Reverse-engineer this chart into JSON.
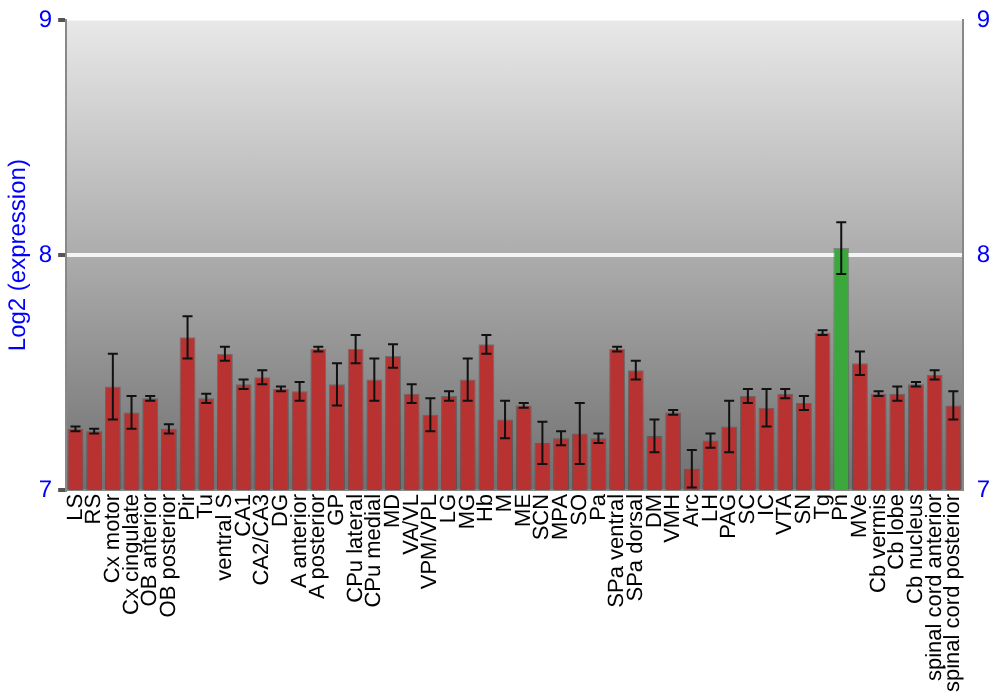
{
  "chart_data": {
    "type": "bar",
    "ylabel": "Log2 (expression)",
    "categories": [
      "LS",
      "RS",
      "Cx motor",
      "Cx cingulate",
      "OB anterior",
      "OB posterior",
      "Pir",
      "Tu",
      "ventral S",
      "CA1",
      "CA2/CA3",
      "DG",
      "A anterior",
      "A posterior",
      "GP",
      "CPu lateral",
      "CPu medial",
      "MD",
      "VA/VL",
      "VPM/VPL",
      "LG",
      "MG",
      "Hb",
      "M",
      "ME",
      "SCN",
      "MPA",
      "SO",
      "Pa",
      "SPa ventral",
      "SPa dorsal",
      "DM",
      "VMH",
      "Arc",
      "LH",
      "PAG",
      "SC",
      "IC",
      "VTA",
      "SN",
      "Tg",
      "Pn",
      "MVe",
      "Cb vermis",
      "Cb lobe",
      "Cb nucleus",
      "spinal cord anterior",
      "spinal cord posterior"
    ],
    "values": [
      7.26,
      7.25,
      7.44,
      7.33,
      7.39,
      7.26,
      7.65,
      7.39,
      7.58,
      7.45,
      7.48,
      7.43,
      7.42,
      7.6,
      7.45,
      7.6,
      7.47,
      7.57,
      7.41,
      7.32,
      7.4,
      7.47,
      7.62,
      7.3,
      7.36,
      7.2,
      7.22,
      7.24,
      7.22,
      7.6,
      7.51,
      7.23,
      7.33,
      7.09,
      7.21,
      7.27,
      7.4,
      7.35,
      7.41,
      7.37,
      7.67,
      8.03,
      7.54,
      7.41,
      7.41,
      7.45,
      7.49,
      7.36
    ],
    "errors": [
      0.01,
      0.01,
      0.14,
      0.07,
      0.01,
      0.02,
      0.09,
      0.02,
      0.03,
      0.02,
      0.03,
      0.01,
      0.04,
      0.01,
      0.09,
      0.06,
      0.09,
      0.05,
      0.04,
      0.07,
      0.02,
      0.09,
      0.04,
      0.08,
      0.01,
      0.09,
      0.03,
      0.13,
      0.02,
      0.01,
      0.04,
      0.07,
      0.01,
      0.08,
      0.03,
      0.11,
      0.03,
      0.08,
      0.02,
      0.03,
      0.01,
      0.11,
      0.05,
      0.01,
      0.03,
      0.01,
      0.02,
      0.06
    ],
    "colors": [
      "#b83232",
      "#b83232",
      "#b83232",
      "#b83232",
      "#b83232",
      "#b83232",
      "#b83232",
      "#b83232",
      "#b83232",
      "#b83232",
      "#b83232",
      "#b83232",
      "#b83232",
      "#b83232",
      "#b83232",
      "#b83232",
      "#b83232",
      "#b83232",
      "#b83232",
      "#b83232",
      "#b83232",
      "#b83232",
      "#b83232",
      "#b83232",
      "#b83232",
      "#b83232",
      "#b83232",
      "#b83232",
      "#b83232",
      "#b83232",
      "#b83232",
      "#b83232",
      "#b83232",
      "#b83232",
      "#b83232",
      "#b83232",
      "#b83232",
      "#b83232",
      "#b83232",
      "#b83232",
      "#b83232",
      "#3aa83a",
      "#b83232",
      "#b83232",
      "#b83232",
      "#b83232",
      "#b83232",
      "#b83232"
    ],
    "ylim": [
      7,
      9
    ],
    "yticks": [
      7,
      8,
      9
    ],
    "y2lim": [
      7,
      9
    ],
    "y2ticks": [
      7,
      8,
      9
    ],
    "grid": "y",
    "legend": false
  }
}
